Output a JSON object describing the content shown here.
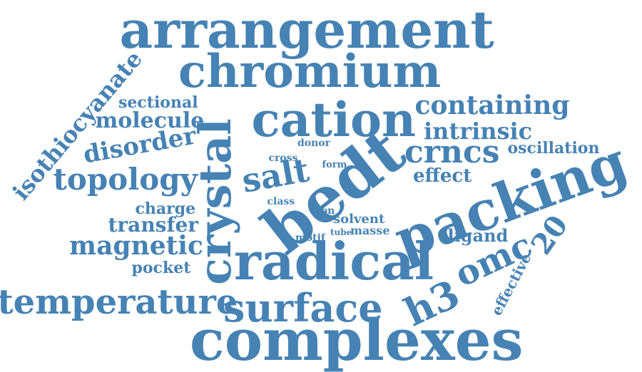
{
  "color": "#4682b4",
  "words": [
    {
      "text": "arrangement"
    },
    {
      "text": "chromium"
    },
    {
      "text": "isothiocyanate"
    },
    {
      "text": "sectional"
    },
    {
      "text": "molecule"
    },
    {
      "text": "crystal"
    },
    {
      "text": "cation"
    },
    {
      "text": "containing"
    },
    {
      "text": "intrinsic"
    },
    {
      "text": "disorder"
    },
    {
      "text": "crncs"
    },
    {
      "text": "oscillation"
    },
    {
      "text": "donor"
    },
    {
      "text": "cross"
    },
    {
      "text": "form"
    },
    {
      "text": "bedt"
    },
    {
      "text": "topology"
    },
    {
      "text": "salt"
    },
    {
      "text": "effect"
    },
    {
      "text": "packing"
    },
    {
      "text": "class"
    },
    {
      "text": "charge"
    },
    {
      "text": "ion"
    },
    {
      "text": "solvent"
    },
    {
      "text": "transfer"
    },
    {
      "text": "motif"
    },
    {
      "text": "tube"
    },
    {
      "text": "masse"
    },
    {
      "text": "ligand"
    },
    {
      "text": "20"
    },
    {
      "text": "magnetic"
    },
    {
      "text": "omc"
    },
    {
      "text": "pocket"
    },
    {
      "text": "radical"
    },
    {
      "text": "effective"
    },
    {
      "text": "temperature"
    },
    {
      "text": "surface"
    },
    {
      "text": "h3"
    },
    {
      "text": "complexes"
    }
  ]
}
